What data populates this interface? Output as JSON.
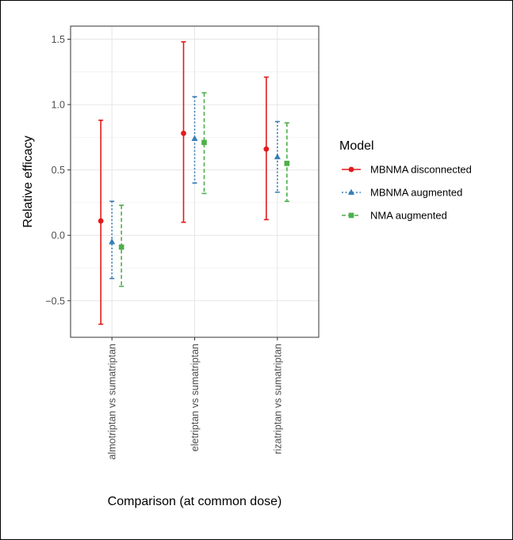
{
  "chart_data": {
    "type": "errorbar",
    "title": "",
    "xlabel": "Comparison (at common dose)",
    "ylabel": "Relative efficacy",
    "ylim": [
      -0.78,
      1.6
    ],
    "yticks": [
      -0.5,
      0.0,
      0.5,
      1.0,
      1.5
    ],
    "ytick_labels": [
      "−0.5",
      "0.0",
      "0.5",
      "1.0",
      "1.5"
    ],
    "categories": [
      "almotriptan vs sumatriptan",
      "eletriptan vs sumatriptan",
      "rizatriptan vs sumatriptan"
    ],
    "grid": true,
    "legend": {
      "title": "Model",
      "placement": "right"
    },
    "series": [
      {
        "name": "MBNMA disconnected",
        "color": "#e41a1c",
        "marker": "circle",
        "linestyle": "solid",
        "points": [
          {
            "category": "almotriptan vs sumatriptan",
            "estimate": 0.11,
            "lower": -0.68,
            "upper": 0.88
          },
          {
            "category": "eletriptan vs sumatriptan",
            "estimate": 0.78,
            "lower": 0.1,
            "upper": 1.48
          },
          {
            "category": "rizatriptan vs sumatriptan",
            "estimate": 0.66,
            "lower": 0.12,
            "upper": 1.21
          }
        ]
      },
      {
        "name": "MBNMA augmented",
        "color": "#377eb8",
        "marker": "triangle",
        "linestyle": "dotted",
        "points": [
          {
            "category": "almotriptan vs sumatriptan",
            "estimate": -0.05,
            "lower": -0.33,
            "upper": 0.26
          },
          {
            "category": "eletriptan vs sumatriptan",
            "estimate": 0.74,
            "lower": 0.4,
            "upper": 1.06
          },
          {
            "category": "rizatriptan vs sumatriptan",
            "estimate": 0.6,
            "lower": 0.33,
            "upper": 0.87
          }
        ]
      },
      {
        "name": "NMA augmented",
        "color": "#4daf4a",
        "marker": "square",
        "linestyle": "dashed",
        "points": [
          {
            "category": "almotriptan vs sumatriptan",
            "estimate": -0.09,
            "lower": -0.39,
            "upper": 0.23
          },
          {
            "category": "eletriptan vs sumatriptan",
            "estimate": 0.71,
            "lower": 0.32,
            "upper": 1.09
          },
          {
            "category": "rizatriptan vs sumatriptan",
            "estimate": 0.55,
            "lower": 0.26,
            "upper": 0.86
          }
        ]
      }
    ]
  }
}
